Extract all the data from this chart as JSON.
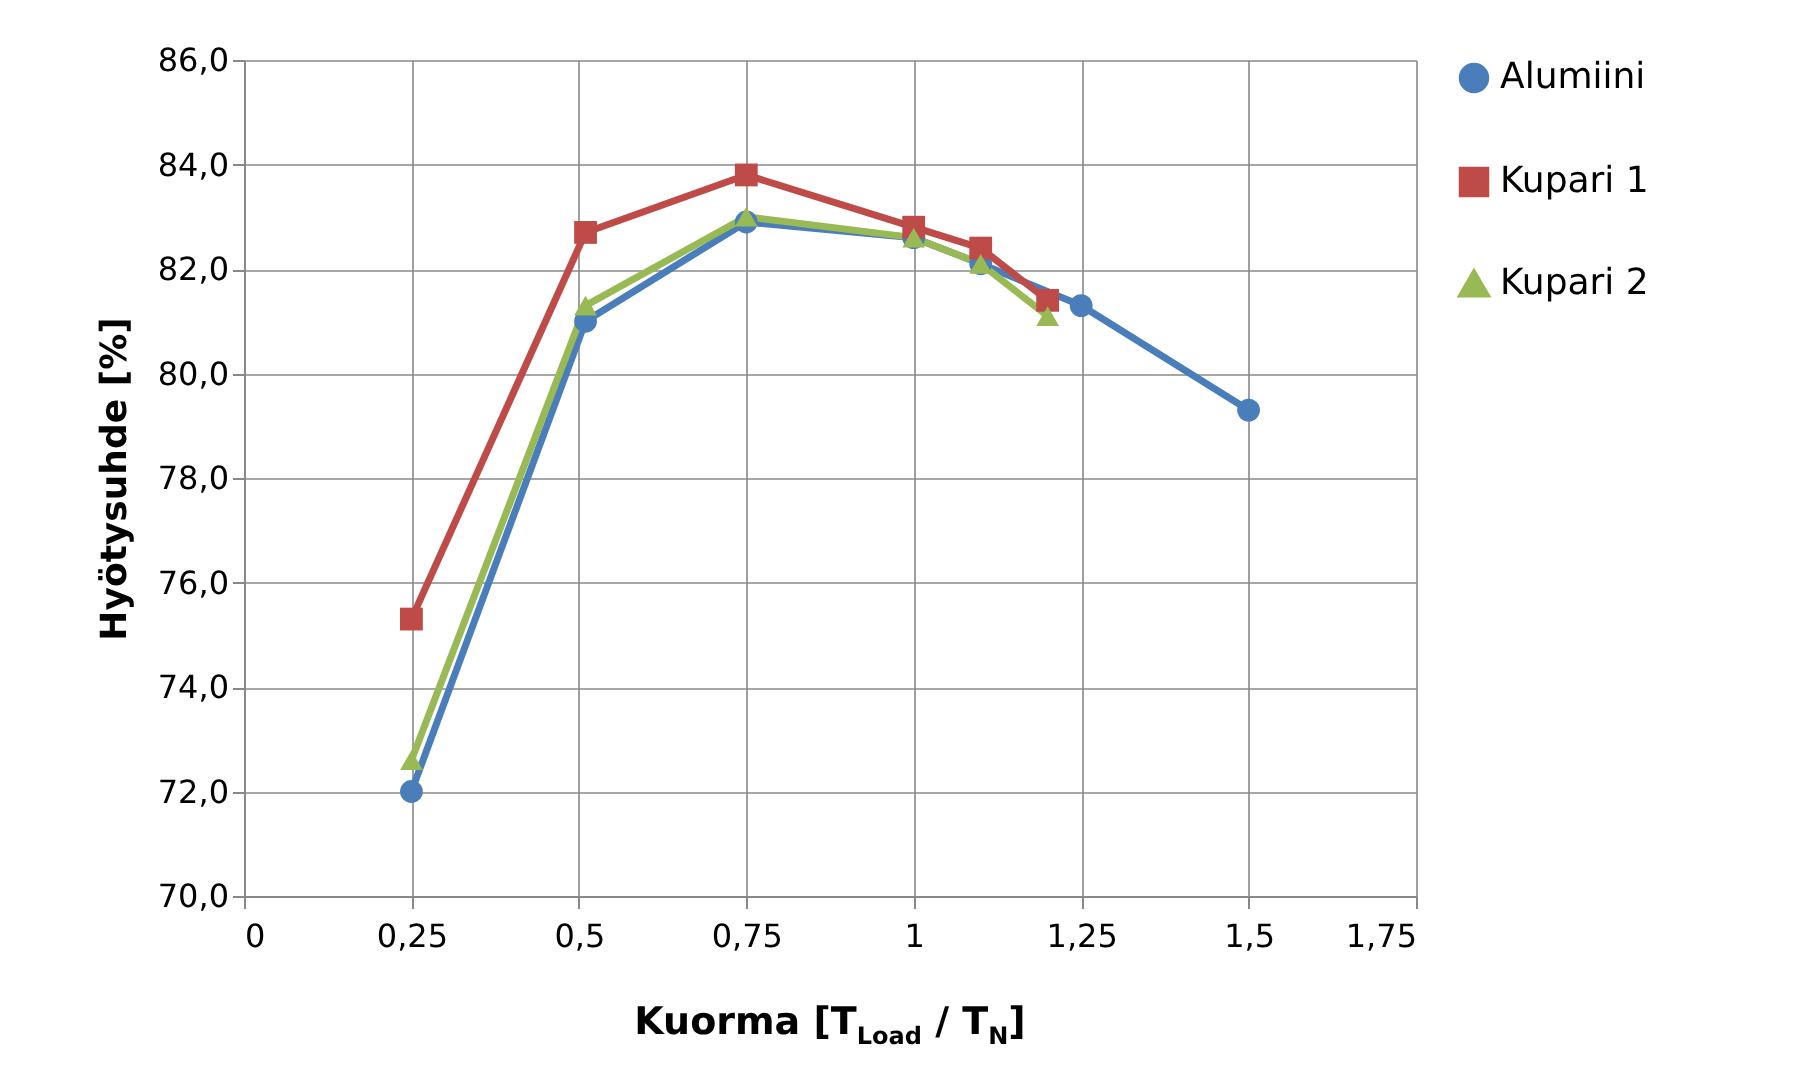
{
  "chart_data": {
    "type": "line",
    "xlabel": "Kuorma [T$_{Load}$ / T$_{N}$]",
    "ylabel": "Hyötysuhde [%]",
    "series": [
      {
        "name": "Alumiini",
        "color": "#4a7ebb",
        "marker": "circle",
        "x": [
          0.25,
          0.51,
          0.75,
          1.0,
          1.1,
          1.25,
          1.5
        ],
        "values": [
          72.0,
          81.0,
          82.9,
          82.6,
          82.1,
          81.3,
          79.3
        ]
      },
      {
        "name": "Kupari 1",
        "color": "#be4b48",
        "marker": "square",
        "x": [
          0.25,
          0.51,
          0.75,
          1.0,
          1.1,
          1.2
        ],
        "values": [
          75.3,
          82.7,
          83.8,
          82.8,
          82.4,
          81.4
        ]
      },
      {
        "name": "Kupari 2",
        "color": "#98b954",
        "marker": "triangle",
        "x": [
          0.25,
          0.51,
          0.75,
          1.0,
          1.1,
          1.2
        ],
        "values": [
          72.6,
          81.3,
          83.0,
          82.6,
          82.1,
          81.1
        ]
      }
    ],
    "xlim": [
      0,
      1.75
    ],
    "xticks": [
      0,
      {
        "value": 0.25,
        "label": "0,25"
      },
      {
        "value": 0.5,
        "label": "0,5"
      },
      {
        "value": 0.75,
        "label": "0,75"
      },
      1,
      {
        "value": 1.25,
        "label": "1,25"
      },
      {
        "value": 1.5,
        "label": "1,5"
      },
      {
        "value": 1.75,
        "label": "1,75"
      }
    ],
    "ylim": [
      70,
      86
    ],
    "yticks": [
      {
        "value": 70,
        "label": "70,0"
      },
      {
        "value": 72,
        "label": "72,0"
      },
      {
        "value": 74,
        "label": "74,0"
      },
      {
        "value": 76,
        "label": "76,0"
      },
      {
        "value": 78,
        "label": "78,0"
      },
      {
        "value": 80,
        "label": "80,0"
      },
      {
        "value": 82,
        "label": "82,0"
      },
      {
        "value": 84,
        "label": "84,0"
      },
      {
        "value": 86,
        "label": "86,0"
      }
    ],
    "grid": true,
    "legend": "right",
    "line_style": "solid"
  }
}
